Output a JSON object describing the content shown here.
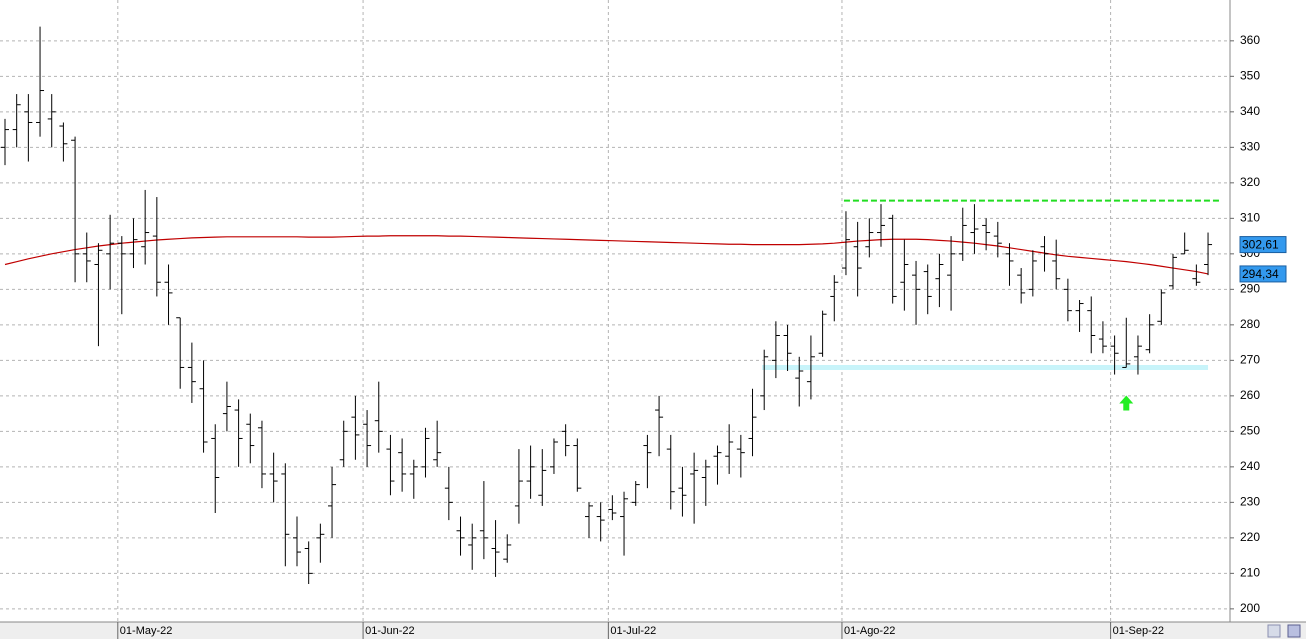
{
  "chart_data": {
    "type": "ohlc",
    "categories": [
      null,
      null,
      null,
      null,
      null,
      null,
      null,
      null,
      null,
      null,
      "01-May-22",
      null,
      null,
      null,
      null,
      null,
      null,
      null,
      null,
      null,
      null,
      null,
      null,
      null,
      null,
      null,
      null,
      null,
      null,
      null,
      null,
      "01-Jun-22",
      null,
      null,
      null,
      null,
      null,
      null,
      null,
      null,
      null,
      null,
      null,
      null,
      null,
      null,
      null,
      null,
      null,
      null,
      null,
      null,
      "01-Jul-22",
      null,
      null,
      null,
      null,
      null,
      null,
      null,
      null,
      null,
      null,
      null,
      null,
      null,
      null,
      null,
      null,
      null,
      null,
      null,
      "01-Ago-22",
      null,
      null,
      null,
      null,
      null,
      null,
      null,
      null,
      null,
      null,
      null,
      null,
      null,
      null,
      null,
      null,
      null,
      null,
      null,
      null,
      null,
      null,
      "01-Sep-22",
      null,
      null,
      null,
      null,
      null,
      null,
      null,
      null
    ],
    "open": [
      330,
      335,
      340,
      337,
      338,
      336,
      332,
      300,
      297,
      300,
      303,
      300,
      302,
      305,
      292,
      282,
      268,
      262,
      248,
      255,
      256,
      252,
      251,
      238,
      238,
      220,
      217,
      220,
      229,
      242,
      254,
      252,
      253,
      245,
      244,
      238,
      240,
      242,
      234,
      222,
      218,
      222,
      217,
      214,
      229,
      236,
      232,
      240,
      250,
      246,
      226,
      226,
      228,
      226,
      230,
      246,
      256,
      245,
      234,
      238,
      237,
      243,
      243,
      245,
      248,
      260,
      270,
      277,
      265,
      264,
      272,
      288,
      296,
      302,
      302,
      306,
      310,
      292,
      294,
      295,
      293,
      294,
      300,
      306,
      308,
      305,
      300,
      294,
      290,
      302,
      298,
      290,
      284,
      284,
      276,
      274,
      268,
      271,
      273,
      281,
      291,
      300,
      293,
      297
    ],
    "high": [
      338,
      345,
      345,
      364,
      345,
      337,
      333,
      306,
      303,
      311,
      305,
      310,
      318,
      316,
      297,
      282,
      275,
      270,
      252,
      264,
      259,
      255,
      253,
      244,
      241,
      226,
      219,
      224,
      240,
      253,
      260,
      256,
      264,
      249,
      248,
      242,
      251,
      253,
      240,
      226,
      224,
      236,
      225,
      221,
      245,
      246,
      245,
      248,
      252,
      248,
      230,
      230,
      232,
      233,
      236,
      249,
      260,
      249,
      240,
      244,
      242,
      246,
      252,
      249,
      262,
      273,
      281,
      280,
      271,
      277,
      284,
      294,
      312,
      309,
      310,
      314,
      311,
      304,
      298,
      297,
      300,
      305,
      313,
      314,
      310,
      309,
      303,
      296,
      301,
      305,
      304,
      293,
      287,
      288,
      281,
      277,
      282,
      277,
      283,
      290,
      300,
      306,
      297,
      306
    ],
    "low": [
      325,
      330,
      326,
      333,
      330,
      326,
      292,
      292,
      274,
      290,
      283,
      296,
      297,
      288,
      280,
      262,
      258,
      244,
      227,
      250,
      240,
      241,
      234,
      230,
      212,
      212,
      207,
      213,
      220,
      240,
      242,
      240,
      244,
      232,
      233,
      231,
      237,
      240,
      225,
      215,
      211,
      214,
      209,
      213,
      224,
      231,
      229,
      238,
      243,
      233,
      220,
      219,
      225,
      215,
      229,
      234,
      243,
      228,
      226,
      224,
      229,
      235,
      238,
      237,
      243,
      256,
      265,
      267,
      257,
      259,
      271,
      281,
      294,
      288,
      299,
      302,
      286,
      284,
      280,
      283,
      285,
      284,
      298,
      300,
      301,
      299,
      291,
      286,
      288,
      295,
      290,
      281,
      278,
      272,
      272,
      266,
      268,
      266,
      272,
      280,
      290,
      300,
      291,
      294
    ],
    "close": [
      335,
      342,
      337,
      346,
      340,
      331,
      300,
      298,
      301,
      303,
      300,
      304,
      306,
      292,
      289,
      268,
      264,
      247,
      237,
      257,
      248,
      246,
      238,
      236,
      221,
      216,
      210,
      221,
      235,
      250,
      249,
      246,
      250,
      236,
      238,
      240,
      248,
      244,
      230,
      220,
      220,
      220,
      216,
      218,
      236,
      240,
      239,
      247,
      246,
      234,
      229,
      225,
      227,
      231,
      235,
      244,
      254,
      233,
      232,
      239,
      240,
      244,
      247,
      244,
      254,
      271,
      277,
      272,
      267,
      271,
      283,
      292,
      304,
      296,
      306,
      308,
      288,
      297,
      290,
      288,
      297,
      300,
      308,
      307,
      306,
      303,
      298,
      289,
      298,
      300,
      293,
      284,
      286,
      277,
      274,
      272,
      269,
      274,
      280,
      289,
      299,
      301,
      292,
      302.61
    ],
    "bar_color": "#000000",
    "moving_average": {
      "color": "#c00000",
      "values": [
        297,
        297.8,
        298.6,
        299.3,
        300,
        300.6,
        301.2,
        301.7,
        302.2,
        302.6,
        303,
        303.3,
        303.6,
        303.9,
        304.1,
        304.3,
        304.5,
        304.6,
        304.7,
        304.8,
        304.8,
        304.8,
        304.8,
        304.8,
        304.8,
        304.8,
        304.7,
        304.7,
        304.7,
        304.8,
        304.9,
        305,
        305,
        305.1,
        305.1,
        305.1,
        305.1,
        305.1,
        305,
        305,
        304.9,
        304.8,
        304.7,
        304.6,
        304.5,
        304.4,
        304.3,
        304.2,
        304.1,
        304,
        303.9,
        303.8,
        303.7,
        303.6,
        303.5,
        303.4,
        303.3,
        303.2,
        303.1,
        303,
        302.9,
        302.8,
        302.7,
        302.7,
        302.6,
        302.6,
        302.6,
        302.6,
        302.6,
        302.7,
        302.8,
        303,
        303.3,
        303.6,
        303.8,
        304,
        304.1,
        304.1,
        304.1,
        304,
        303.8,
        303.6,
        303.3,
        303,
        302.6,
        302.2,
        301.7,
        301.2,
        300.7,
        300.2,
        299.7,
        299.3,
        299,
        298.7,
        298.4,
        298.1,
        297.8,
        297.4,
        297,
        296.5,
        296,
        295.5,
        295,
        294.34
      ]
    },
    "resistance": {
      "value": 315,
      "color": "#22dd22"
    },
    "support": {
      "value": 268,
      "color": "#c8f4fa"
    },
    "last_labels": [
      {
        "value": 302.61,
        "label": "302,61"
      },
      {
        "value": 294.34,
        "label": "294,34"
      }
    ],
    "signal_color": "#22ee22",
    "ylim": [
      196.3,
      371.5
    ],
    "yticks": [
      200,
      210,
      220,
      230,
      240,
      250,
      260,
      270,
      280,
      290,
      300,
      310,
      320,
      330,
      340,
      350,
      360
    ],
    "grid": true
  }
}
